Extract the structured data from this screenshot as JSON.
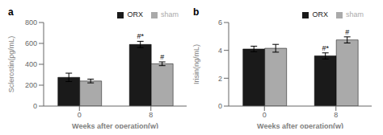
{
  "chart_data": [
    {
      "type": "bar",
      "title": "a",
      "y_label": "Sclerostin(pg/mL)",
      "x_label": "Weeks after operation(w)",
      "categories": [
        "0",
        "8"
      ],
      "series": [
        {
          "name": "ORX",
          "color": "#1a1a1a",
          "values": [
            275,
            590
          ],
          "errors": [
            40,
            30
          ],
          "annotations": [
            null,
            "#*"
          ]
        },
        {
          "name": "sham",
          "color": "#aaaaaa",
          "values": [
            240,
            405
          ],
          "errors": [
            18,
            18
          ],
          "annotations": [
            null,
            "#"
          ]
        }
      ],
      "ylim": [
        0,
        800
      ],
      "yticks": [
        0,
        200,
        400,
        600,
        800
      ],
      "legend": "upper right"
    },
    {
      "type": "bar",
      "title": "b",
      "y_label": "Irisin(ng/mL)",
      "x_label": "Weeks after operation(w)",
      "categories": [
        "0",
        "8"
      ],
      "series": [
        {
          "name": "ORX",
          "color": "#1a1a1a",
          "values": [
            4.1,
            3.6
          ],
          "errors": [
            0.2,
            0.22
          ],
          "annotations": [
            null,
            "#*"
          ]
        },
        {
          "name": "sham",
          "color": "#aaaaaa",
          "values": [
            4.15,
            4.75
          ],
          "errors": [
            0.28,
            0.22
          ],
          "annotations": [
            null,
            "#"
          ]
        }
      ],
      "ylim": [
        0,
        6
      ],
      "yticks": [
        0,
        2,
        4,
        6
      ],
      "legend": "upper right"
    }
  ]
}
